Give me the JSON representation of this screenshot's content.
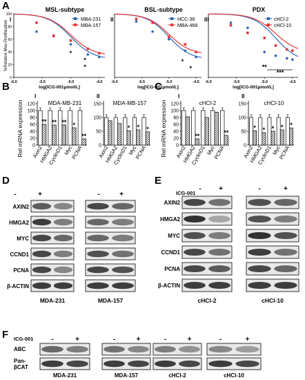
{
  "panels": {
    "A": "A",
    "B": "B",
    "C": "C",
    "D": "D",
    "E": "E",
    "F": "F"
  },
  "panel_A": {
    "ylabel": "%Relative Max-Proliferation",
    "xlabel": "log[ICG-001µmol/L]",
    "xticks": [
      "-6.0",
      "-5.5",
      "-5.0",
      "-4.5"
    ],
    "yticks": [
      "0",
      "20",
      "40",
      "60",
      "80",
      "100"
    ],
    "subpanels": [
      {
        "roman": "I",
        "title": "MSL-subtype",
        "legend": [
          "MBA-231",
          "MBA-157"
        ],
        "stars": [
          "*",
          "*",
          "*"
        ]
      },
      {
        "roman": "II",
        "title": "BSL-subtype",
        "legend": [
          "HCC-38",
          "MBA-468"
        ],
        "stars": [
          "*",
          "*"
        ]
      },
      {
        "roman": "III",
        "title": "PDX",
        "legend": [
          "cHCl-2",
          "cHCl-10"
        ],
        "stars": [
          "**",
          "***"
        ]
      }
    ],
    "colors": {
      "blue": "#2f63b6",
      "red": "#e23a3a"
    }
  },
  "chart_data": [
    {
      "type": "line",
      "title": "MSL-subtype",
      "xlabel": "log[ICG-001µmol/L]",
      "ylabel": "%Relative Max-Proliferation",
      "xlim": [
        -6.0,
        -4.4
      ],
      "ylim": [
        0,
        100
      ],
      "series": [
        {
          "name": "MBA-231",
          "x": [
            -5.6,
            -5.3,
            -5.0,
            -4.7,
            -4.5
          ],
          "y": [
            72,
            66,
            52,
            36,
            32
          ]
        },
        {
          "name": "MBA-157",
          "x": [
            -5.6,
            -5.3,
            -5.0,
            -4.7,
            -4.5
          ],
          "y": [
            86,
            65,
            58,
            45,
            38
          ]
        }
      ]
    },
    {
      "type": "line",
      "title": "BSL-subtype",
      "xlabel": "log[ICG-001µmol/L]",
      "ylabel": "",
      "xlim": [
        -6.0,
        -4.4
      ],
      "ylim": [
        0,
        100
      ],
      "series": [
        {
          "name": "HCC-38",
          "x": [
            -5.6,
            -5.3,
            -5.0,
            -4.7,
            -4.5
          ],
          "y": [
            88,
            72,
            60,
            42,
            32
          ]
        },
        {
          "name": "MBA-468",
          "x": [
            -5.6,
            -5.3,
            -5.0,
            -4.7,
            -4.5
          ],
          "y": [
            92,
            86,
            64,
            52,
            40
          ]
        }
      ]
    },
    {
      "type": "line",
      "title": "PDX",
      "xlabel": "log[ICG-001µmol/L]",
      "ylabel": "",
      "xlim": [
        -6.0,
        -4.4
      ],
      "ylim": [
        0,
        100
      ],
      "series": [
        {
          "name": "cHCl-2",
          "x": [
            -5.6,
            -5.3,
            -5.0,
            -4.8,
            -4.6,
            -4.5
          ],
          "y": [
            86,
            78,
            40,
            34,
            30,
            28
          ]
        },
        {
          "name": "cHCl-10",
          "x": [
            -5.6,
            -5.3,
            -5.0,
            -4.8,
            -4.6,
            -4.5
          ],
          "y": [
            82,
            70,
            62,
            50,
            44,
            42
          ]
        }
      ]
    },
    {
      "type": "bar",
      "title": "MDA-MB-231",
      "roman": "I",
      "ylabel": "Rel mRNA expression",
      "ylim": [
        0,
        120
      ],
      "categories": [
        "Axin2",
        "HMGA2",
        "CyclinD1",
        "Myc",
        "PCNA"
      ],
      "series": [
        {
          "name": "",
          "values": [
            100,
            100,
            100,
            100,
            100
          ]
        },
        {
          "name": "",
          "values": [
            60,
            58,
            58,
            50,
            18
          ]
        }
      ],
      "stars": [
        "**",
        "**",
        "**",
        "*",
        "**"
      ],
      "ytick_step": 20
    },
    {
      "type": "bar",
      "title": "MDA-MB-157",
      "roman": "II",
      "ylabel": "",
      "ylim": [
        0,
        150
      ],
      "categories": [
        "Axin2",
        "HMGA2",
        "CyclinD1",
        "Myc",
        "PCNA"
      ],
      "series": [
        {
          "name": "",
          "values": [
            100,
            100,
            100,
            100,
            100
          ]
        },
        {
          "name": "",
          "values": [
            88,
            78,
            52,
            55,
            48
          ]
        }
      ],
      "stars": [
        "",
        "",
        "*",
        "*",
        "*"
      ],
      "ytick_step": 50
    },
    {
      "type": "bar",
      "title": "cHCl-2",
      "roman": "I",
      "ylabel": "Rel mRNA expression",
      "ylim": [
        0,
        120
      ],
      "categories": [
        "Axin2",
        "HMGA2",
        "CyclinD1",
        "Myc",
        "PCNA"
      ],
      "series": [
        {
          "name": "",
          "values": [
            100,
            100,
            100,
            100,
            100
          ]
        },
        {
          "name": "",
          "values": [
            82,
            18,
            80,
            95,
            28
          ]
        }
      ],
      "stars": [
        "",
        "**",
        "",
        "",
        "**"
      ],
      "ytick_step": 20
    },
    {
      "type": "bar",
      "title": "cHCl-10",
      "roman": "II",
      "ylabel": "",
      "ylim": [
        0,
        150
      ],
      "categories": [
        "Axin2",
        "HMGA2",
        "CyclinD1",
        "Myc",
        "PCNA"
      ],
      "series": [
        {
          "name": "",
          "values": [
            100,
            100,
            100,
            100,
            100
          ]
        },
        {
          "name": "",
          "values": [
            52,
            45,
            50,
            55,
            62
          ]
        }
      ],
      "stars": [
        "*",
        "*",
        "*",
        "*",
        "*"
      ],
      "ytick_step": 50
    }
  ],
  "blots_D": {
    "treatment_label": "ICG-001",
    "signs": [
      "-",
      "+"
    ],
    "rows": [
      "AXIN2",
      "HMGA2",
      "MYC",
      "CCND1",
      "PCNA",
      "β-ACTIN"
    ],
    "groups": [
      "MDA-231",
      "MDA-157"
    ]
  },
  "blots_E": {
    "treatment_label": "ICG-001",
    "signs": [
      "-",
      "+"
    ],
    "rows": [
      "AXIN2",
      "HMGA2",
      "MYC",
      "CCND1",
      "PCNA",
      "β-ACTIN"
    ],
    "groups": [
      "cHCl-2",
      "cHCl-10"
    ]
  },
  "blots_F": {
    "treatment_label": "ICG-001",
    "signs": [
      "-",
      "+"
    ],
    "rows": [
      "ABC",
      "Pan-",
      "βCAT"
    ],
    "groups": [
      "MDA-231",
      "MDA-157",
      "cHCl-2",
      "cHCl-10"
    ]
  }
}
